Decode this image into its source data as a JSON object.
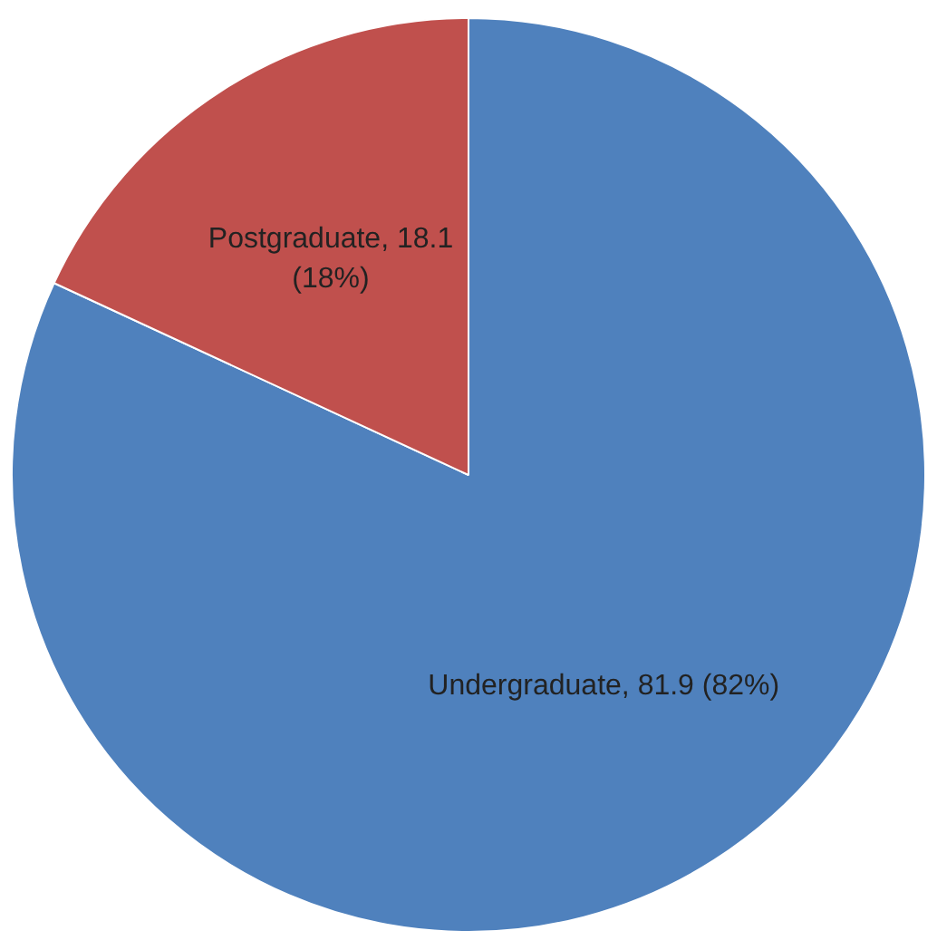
{
  "chart_data": {
    "type": "pie",
    "categories": [
      "Undergraduate",
      "Postgraduate"
    ],
    "values": [
      81.9,
      18.1
    ],
    "colors": [
      "#4f81bd",
      "#c0504d"
    ],
    "value_labels": [
      "81.9 (82%)",
      "18.1 (18%)"
    ],
    "legend": false
  }
}
